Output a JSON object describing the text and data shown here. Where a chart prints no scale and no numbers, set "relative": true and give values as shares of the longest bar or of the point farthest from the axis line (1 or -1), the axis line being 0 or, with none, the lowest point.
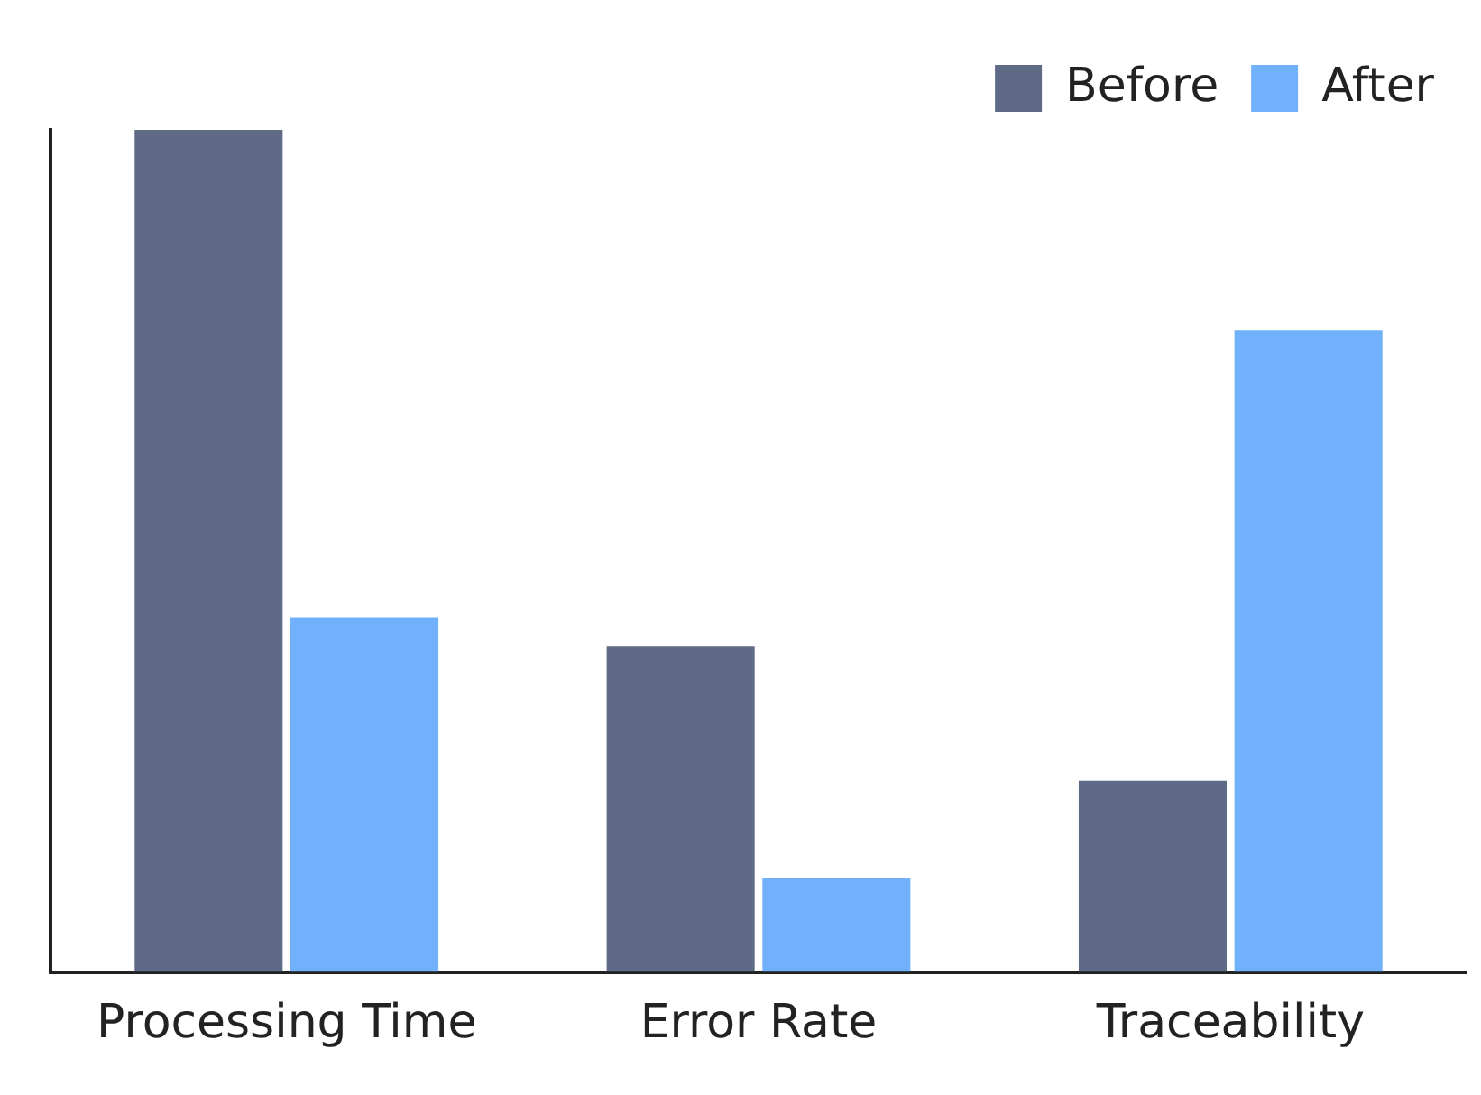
{
  "chart_data": {
    "type": "bar",
    "relative": true,
    "categories": [
      "Processing Time",
      "Error Rate",
      "Traceability"
    ],
    "series": [
      {
        "name": "Before",
        "color": "#5e6a86",
        "values": [
          1,
          0.387,
          0.227
        ]
      },
      {
        "name": "After",
        "color": "#71b1fb",
        "values": [
          0.421,
          0.112,
          0.762
        ]
      }
    ],
    "legend": "top right",
    "grid": false
  }
}
